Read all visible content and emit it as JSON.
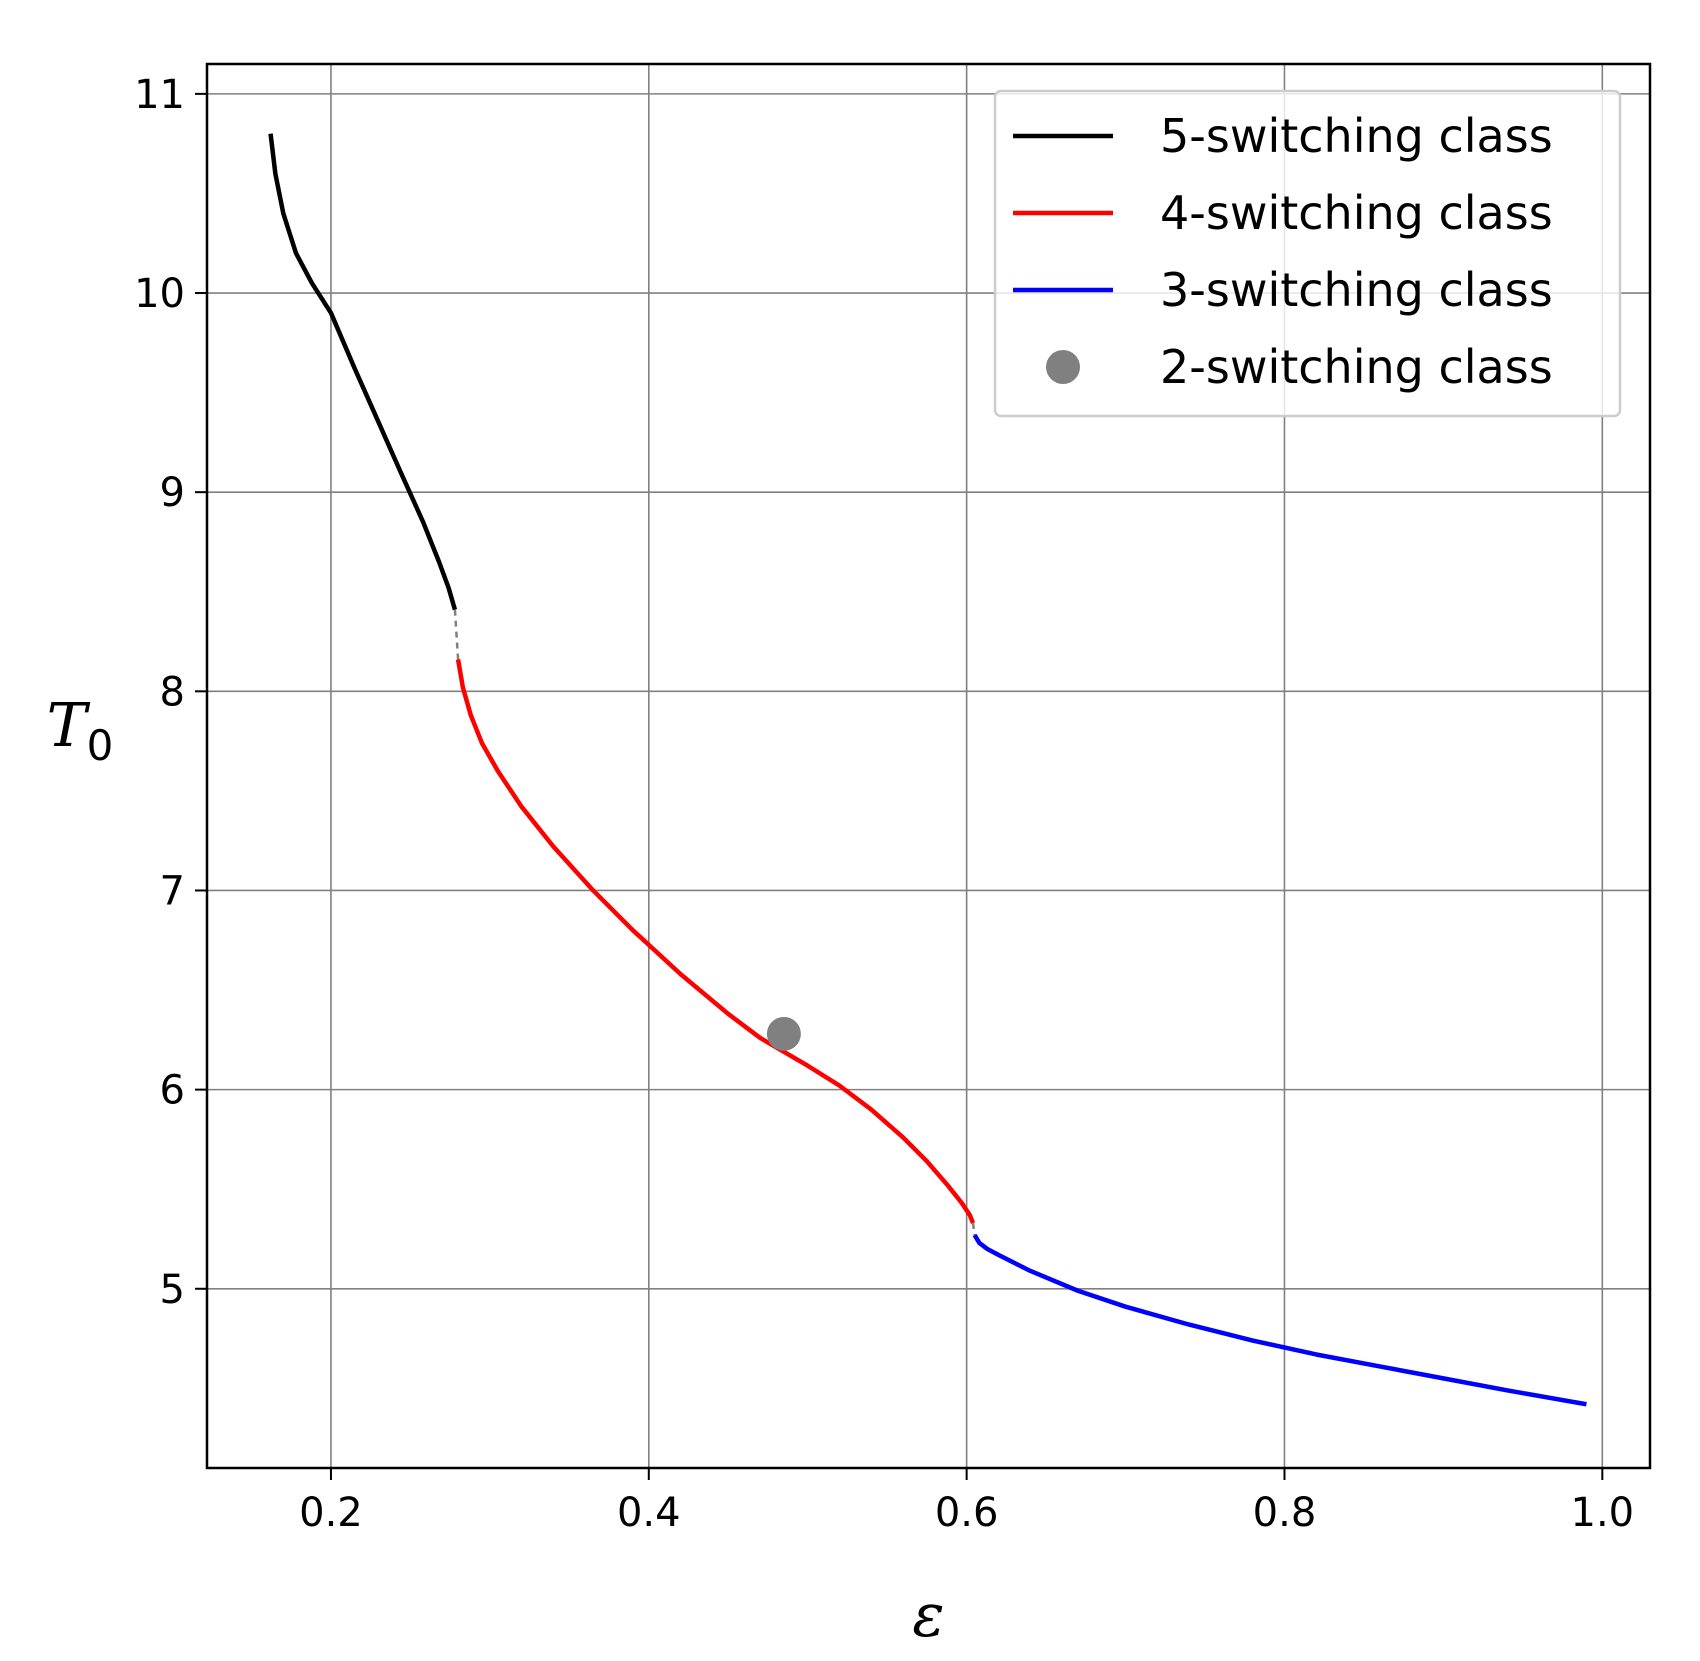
{
  "chart_data": {
    "type": "line",
    "title": "",
    "xlabel": "ε",
    "ylabel": {
      "main": "T",
      "sub": "0"
    },
    "xlim": [
      0.122,
      1.03
    ],
    "ylim": [
      4.1,
      11.15
    ],
    "xticks": [
      0.2,
      0.4,
      0.6,
      0.8,
      1.0
    ],
    "xtick_labels": [
      "0.2",
      "0.4",
      "0.6",
      "0.8",
      "1.0"
    ],
    "yticks": [
      5,
      6,
      7,
      8,
      9,
      10,
      11
    ],
    "ytick_labels": [
      "5",
      "6",
      "7",
      "8",
      "9",
      "10",
      "11"
    ],
    "grid": true,
    "legend_position": "top-right",
    "colors": {
      "grid": "#808080",
      "axes": "#000000",
      "connector": "#808080"
    },
    "series": [
      {
        "name": "5-switching class",
        "kind": "line",
        "color": "#000000",
        "x": [
          0.162,
          0.165,
          0.17,
          0.178,
          0.188,
          0.2,
          0.215,
          0.23,
          0.245,
          0.258,
          0.268,
          0.274,
          0.278
        ],
        "y": [
          10.8,
          10.6,
          10.4,
          10.2,
          10.05,
          9.9,
          9.62,
          9.35,
          9.08,
          8.85,
          8.65,
          8.52,
          8.41
        ]
      },
      {
        "name": "4-switching class",
        "kind": "line",
        "color": "#ff0000",
        "x": [
          0.28,
          0.283,
          0.288,
          0.295,
          0.305,
          0.32,
          0.34,
          0.365,
          0.39,
          0.42,
          0.45,
          0.47,
          0.485,
          0.5,
          0.52,
          0.54,
          0.56,
          0.575,
          0.588,
          0.597,
          0.602,
          0.604
        ],
        "y": [
          8.16,
          8.02,
          7.88,
          7.74,
          7.6,
          7.42,
          7.22,
          7.0,
          6.8,
          6.58,
          6.38,
          6.26,
          6.19,
          6.12,
          6.02,
          5.9,
          5.76,
          5.64,
          5.52,
          5.43,
          5.37,
          5.33
        ]
      },
      {
        "name": "3-switching class",
        "kind": "line",
        "color": "#0000ff",
        "x": [
          0.605,
          0.608,
          0.613,
          0.62,
          0.64,
          0.67,
          0.7,
          0.74,
          0.78,
          0.82,
          0.86,
          0.9,
          0.94,
          0.99
        ],
        "y": [
          5.27,
          5.23,
          5.2,
          5.17,
          5.09,
          4.99,
          4.91,
          4.82,
          4.74,
          4.67,
          4.61,
          4.55,
          4.49,
          4.42
        ]
      },
      {
        "name": "2-switching class",
        "kind": "scatter",
        "color": "#808080",
        "x": [
          0.485
        ],
        "y": [
          6.28
        ]
      }
    ],
    "connectors": [
      {
        "x": [
          0.278,
          0.28
        ],
        "y": [
          8.41,
          8.16
        ]
      },
      {
        "x": [
          0.604,
          0.605
        ],
        "y": [
          5.33,
          5.27
        ]
      }
    ]
  }
}
